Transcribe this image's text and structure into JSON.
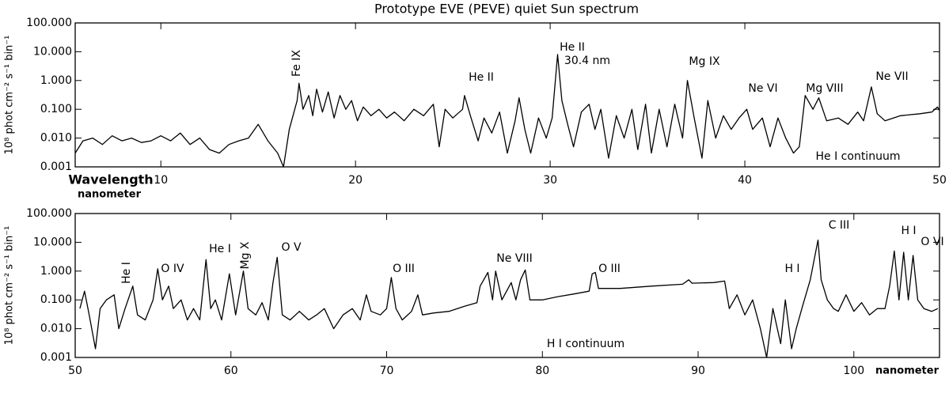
{
  "chart_data": [
    {
      "type": "line",
      "title": "Prototype EVE (PEVE) quiet Sun spectrum",
      "ylabel": "10⁸ phot cm⁻² s⁻¹ bin⁻¹",
      "xlabel": "Wavelength",
      "xunit": "nanometer",
      "log_y": true,
      "color": "#000000",
      "xlim": [
        5.6,
        50
      ],
      "xticks": [
        10,
        20,
        30,
        40,
        50
      ],
      "ylim": [
        0.001,
        100
      ],
      "yticks": [
        {
          "value": 0.001,
          "label": "0.001"
        },
        {
          "value": 0.01,
          "label": "0.010"
        },
        {
          "value": 0.1,
          "label": "0.100"
        },
        {
          "value": 1,
          "label": "1.000"
        },
        {
          "value": 10,
          "label": "10.000"
        },
        {
          "value": 100,
          "label": "100.000"
        }
      ],
      "annotations": [
        "Fe IX",
        "He II",
        "He II",
        "30.4 nm",
        "Mg IX",
        "Ne VI",
        "Mg VIII",
        "Ne VII",
        "He I continuum"
      ],
      "x": [
        5.6,
        6,
        6.5,
        7,
        7.5,
        8,
        8.5,
        9,
        9.5,
        10,
        10.5,
        11,
        11.5,
        12,
        12.5,
        13,
        13.5,
        14,
        14.5,
        15,
        15.5,
        16,
        16.3,
        16.6,
        17,
        17.1,
        17.3,
        17.6,
        17.8,
        18,
        18.3,
        18.6,
        18.9,
        19.2,
        19.5,
        19.8,
        20.1,
        20.4,
        20.8,
        21.2,
        21.6,
        22,
        22.5,
        23,
        23.5,
        24,
        24.3,
        24.6,
        25,
        25.5,
        25.6,
        25.9,
        26.3,
        26.6,
        27,
        27.4,
        27.8,
        28.2,
        28.4,
        28.7,
        29,
        29.4,
        29.8,
        30.1,
        30.38,
        30.6,
        30.9,
        31.2,
        31.6,
        32,
        32.3,
        32.6,
        33,
        33.4,
        33.8,
        34.2,
        34.5,
        34.9,
        35.2,
        35.6,
        36,
        36.4,
        36.8,
        37.05,
        37.4,
        37.8,
        38.1,
        38.5,
        38.9,
        39.3,
        39.7,
        40.1,
        40.4,
        40.9,
        41.3,
        41.7,
        42.1,
        42.5,
        42.8,
        43.1,
        43.5,
        43.8,
        44.2,
        44.8,
        45.3,
        45.8,
        46.1,
        46.5,
        46.8,
        47.2,
        48,
        49,
        49.6,
        49.9,
        50
      ],
      "values": [
        0.003,
        0.008,
        0.01,
        0.006,
        0.012,
        0.008,
        0.01,
        0.007,
        0.008,
        0.012,
        0.008,
        0.015,
        0.006,
        0.01,
        0.004,
        0.003,
        0.006,
        0.008,
        0.01,
        0.03,
        0.008,
        0.003,
        0.001,
        0.02,
        0.2,
        0.8,
        0.1,
        0.3,
        0.06,
        0.5,
        0.08,
        0.4,
        0.05,
        0.3,
        0.1,
        0.2,
        0.04,
        0.12,
        0.06,
        0.1,
        0.05,
        0.08,
        0.04,
        0.1,
        0.06,
        0.15,
        0.005,
        0.1,
        0.05,
        0.1,
        0.3,
        0.06,
        0.008,
        0.05,
        0.015,
        0.08,
        0.003,
        0.04,
        0.25,
        0.02,
        0.003,
        0.05,
        0.01,
        0.05,
        8,
        0.2,
        0.03,
        0.005,
        0.08,
        0.15,
        0.02,
        0.1,
        0.002,
        0.06,
        0.01,
        0.1,
        0.004,
        0.15,
        0.003,
        0.1,
        0.005,
        0.15,
        0.01,
        1,
        0.05,
        0.002,
        0.2,
        0.01,
        0.06,
        0.02,
        0.05,
        0.1,
        0.02,
        0.05,
        0.005,
        0.05,
        0.01,
        0.003,
        0.005,
        0.3,
        0.1,
        0.25,
        0.04,
        0.05,
        0.03,
        0.08,
        0.04,
        0.6,
        0.07,
        0.04,
        0.06,
        0.07,
        0.08,
        0.12,
        0.09
      ]
    },
    {
      "type": "line",
      "ylabel": "10⁸ phot cm⁻² s⁻¹ bin⁻¹",
      "xunit": "nanometer",
      "log_y": true,
      "color": "#000000",
      "xlim": [
        50,
        105.5
      ],
      "xticks": [
        50,
        60,
        70,
        80,
        90,
        100
      ],
      "ylim": [
        0.001,
        100
      ],
      "yticks": [
        {
          "value": 0.001,
          "label": "0.001"
        },
        {
          "value": 0.01,
          "label": "0.010"
        },
        {
          "value": 0.1,
          "label": "0.100"
        },
        {
          "value": 1,
          "label": "1.000"
        },
        {
          "value": 10,
          "label": "10.000"
        },
        {
          "value": 100,
          "label": "100.000"
        }
      ],
      "annotations": [
        "He I",
        "O IV",
        "He I",
        "Mg X",
        "O V",
        "O III",
        "Ne VIII",
        "O III",
        "H I",
        "C III",
        "H I",
        "O VI",
        "H I continuum"
      ],
      "x": [
        50.3,
        50.6,
        50.9,
        51.3,
        51.6,
        52,
        52.5,
        52.8,
        53.2,
        53.7,
        54,
        54.5,
        55,
        55.3,
        55.6,
        56,
        56.3,
        56.8,
        57.2,
        57.6,
        58,
        58.4,
        58.7,
        59,
        59.4,
        59.9,
        60.3,
        60.8,
        61.1,
        61.6,
        62,
        62.4,
        62.7,
        62.97,
        63.3,
        63.8,
        64.4,
        65,
        65.5,
        66,
        66.6,
        67.2,
        67.8,
        68.3,
        68.7,
        69,
        69.6,
        70,
        70.3,
        70.6,
        71,
        71.6,
        72,
        72.3,
        73,
        74,
        75,
        75.8,
        76,
        76.5,
        76.8,
        77,
        77.4,
        78,
        78.3,
        78.6,
        78.9,
        79.2,
        80,
        81,
        82,
        83,
        83.2,
        83.4,
        83.6,
        85,
        87,
        89,
        89.4,
        89.6,
        91,
        91.7,
        92,
        92.5,
        93,
        93.5,
        94,
        94.4,
        94.8,
        95.3,
        95.6,
        96,
        96.3,
        96.7,
        97.2,
        97.7,
        97.9,
        98.3,
        98.7,
        99,
        99.5,
        100,
        100.5,
        101,
        101.5,
        102,
        102.3,
        102.6,
        102.9,
        103.2,
        103.5,
        103.8,
        104.1,
        104.5,
        105,
        105.4
      ],
      "values": [
        0.05,
        0.2,
        0.03,
        0.002,
        0.05,
        0.1,
        0.15,
        0.01,
        0.05,
        0.3,
        0.03,
        0.02,
        0.1,
        1.2,
        0.1,
        0.3,
        0.05,
        0.1,
        0.02,
        0.05,
        0.02,
        2.5,
        0.05,
        0.1,
        0.02,
        0.8,
        0.03,
        1,
        0.05,
        0.03,
        0.08,
        0.02,
        0.4,
        3,
        0.03,
        0.02,
        0.04,
        0.02,
        0.03,
        0.05,
        0.01,
        0.03,
        0.05,
        0.02,
        0.15,
        0.04,
        0.03,
        0.05,
        0.6,
        0.05,
        0.02,
        0.04,
        0.15,
        0.03,
        0.035,
        0.04,
        0.06,
        0.08,
        0.3,
        0.9,
        0.1,
        1,
        0.1,
        0.4,
        0.1,
        0.5,
        1.1,
        0.1,
        0.1,
        0.13,
        0.16,
        0.2,
        0.8,
        0.9,
        0.25,
        0.25,
        0.3,
        0.35,
        0.5,
        0.38,
        0.4,
        0.45,
        0.05,
        0.15,
        0.03,
        0.1,
        0.01,
        0.001,
        0.05,
        0.003,
        0.1,
        0.002,
        0.01,
        0.06,
        0.5,
        12,
        0.5,
        0.1,
        0.05,
        0.04,
        0.15,
        0.04,
        0.08,
        0.03,
        0.05,
        0.05,
        0.3,
        5,
        0.1,
        4.5,
        0.1,
        3.5,
        0.1,
        0.05,
        0.04,
        0.05
      ]
    }
  ]
}
